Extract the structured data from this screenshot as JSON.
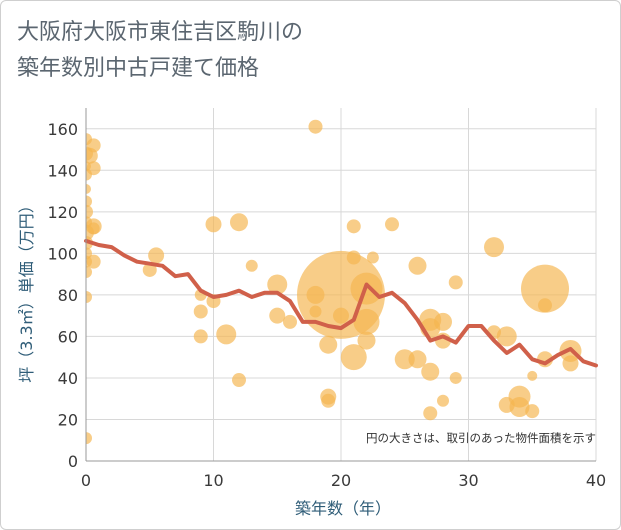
{
  "header": {
    "title_line1": "大阪府大阪市東住吉区駒川の",
    "title_line2": "築年数別中古戸建て価格"
  },
  "chart_data": {
    "type": "scatter",
    "title": "大阪府大阪市東住吉区駒川の築年数別中古戸建て価格",
    "xlabel": "築年数（年）",
    "ylabel": "坪（3.3㎡）単価（万円）",
    "xlim": [
      0,
      40
    ],
    "ylim": [
      0,
      170
    ],
    "xticks": [
      0,
      10,
      20,
      30,
      40
    ],
    "yticks": [
      0,
      20,
      40,
      60,
      80,
      100,
      120,
      140,
      160
    ],
    "grid": true,
    "note": "円の大きさは、取引のあった物件面積を示す",
    "colors": {
      "bubble": "#f5b550",
      "line": "#d0604a",
      "grid": "#d8d8d8",
      "axis": "#999999"
    },
    "bubbles": [
      {
        "x": 0,
        "y": 155,
        "r": 6
      },
      {
        "x": 0,
        "y": 148,
        "r": 7
      },
      {
        "x": 0,
        "y": 142,
        "r": 5
      },
      {
        "x": 0,
        "y": 138,
        "r": 6
      },
      {
        "x": 0,
        "y": 131,
        "r": 5
      },
      {
        "x": 0,
        "y": 125,
        "r": 6
      },
      {
        "x": 0,
        "y": 120,
        "r": 7
      },
      {
        "x": 0,
        "y": 115,
        "r": 6
      },
      {
        "x": 0,
        "y": 110,
        "r": 8
      },
      {
        "x": 0,
        "y": 105,
        "r": 7
      },
      {
        "x": 0,
        "y": 100,
        "r": 6
      },
      {
        "x": 0,
        "y": 96,
        "r": 6
      },
      {
        "x": 0,
        "y": 91,
        "r": 6
      },
      {
        "x": 0,
        "y": 79,
        "r": 6
      },
      {
        "x": 0,
        "y": 11,
        "r": 6
      },
      {
        "x": 0.3,
        "y": 147,
        "r": 8
      },
      {
        "x": 0.6,
        "y": 152,
        "r": 7
      },
      {
        "x": 0.6,
        "y": 141,
        "r": 7
      },
      {
        "x": 0.6,
        "y": 113,
        "r": 8
      },
      {
        "x": 0.6,
        "y": 112,
        "r": 6
      },
      {
        "x": 0.6,
        "y": 96,
        "r": 7
      },
      {
        "x": 5,
        "y": 92,
        "r": 7
      },
      {
        "x": 5.5,
        "y": 99,
        "r": 8
      },
      {
        "x": 9,
        "y": 80,
        "r": 6
      },
      {
        "x": 9,
        "y": 72,
        "r": 7
      },
      {
        "x": 9,
        "y": 60,
        "r": 7
      },
      {
        "x": 10,
        "y": 114,
        "r": 8
      },
      {
        "x": 10,
        "y": 77,
        "r": 7
      },
      {
        "x": 11,
        "y": 61,
        "r": 10
      },
      {
        "x": 12,
        "y": 115,
        "r": 9
      },
      {
        "x": 12,
        "y": 39,
        "r": 7
      },
      {
        "x": 13,
        "y": 94,
        "r": 6
      },
      {
        "x": 15,
        "y": 85,
        "r": 10
      },
      {
        "x": 15,
        "y": 70,
        "r": 8
      },
      {
        "x": 16,
        "y": 67,
        "r": 7
      },
      {
        "x": 18,
        "y": 161,
        "r": 7
      },
      {
        "x": 18,
        "y": 80,
        "r": 9
      },
      {
        "x": 18,
        "y": 72,
        "r": 6
      },
      {
        "x": 19,
        "y": 31,
        "r": 8
      },
      {
        "x": 19,
        "y": 29,
        "r": 7
      },
      {
        "x": 19,
        "y": 56,
        "r": 9
      },
      {
        "x": 20,
        "y": 80,
        "r": 44
      },
      {
        "x": 20,
        "y": 70,
        "r": 8
      },
      {
        "x": 21,
        "y": 113,
        "r": 7
      },
      {
        "x": 21,
        "y": 98,
        "r": 7
      },
      {
        "x": 21,
        "y": 50,
        "r": 13
      },
      {
        "x": 22,
        "y": 83,
        "r": 16
      },
      {
        "x": 22,
        "y": 67,
        "r": 13
      },
      {
        "x": 22,
        "y": 58,
        "r": 9
      },
      {
        "x": 22.5,
        "y": 98,
        "r": 6
      },
      {
        "x": 24,
        "y": 114,
        "r": 7
      },
      {
        "x": 25,
        "y": 49,
        "r": 10
      },
      {
        "x": 26,
        "y": 94,
        "r": 9
      },
      {
        "x": 26,
        "y": 49,
        "r": 9
      },
      {
        "x": 27,
        "y": 68,
        "r": 11
      },
      {
        "x": 27,
        "y": 64,
        "r": 10
      },
      {
        "x": 27,
        "y": 43,
        "r": 9
      },
      {
        "x": 27,
        "y": 23,
        "r": 7
      },
      {
        "x": 28,
        "y": 67,
        "r": 9
      },
      {
        "x": 28,
        "y": 58,
        "r": 8
      },
      {
        "x": 28,
        "y": 29,
        "r": 6
      },
      {
        "x": 29,
        "y": 86,
        "r": 7
      },
      {
        "x": 29,
        "y": 40,
        "r": 6
      },
      {
        "x": 32,
        "y": 103,
        "r": 10
      },
      {
        "x": 32,
        "y": 62,
        "r": 7
      },
      {
        "x": 33,
        "y": 60,
        "r": 10
      },
      {
        "x": 33,
        "y": 27,
        "r": 8
      },
      {
        "x": 34,
        "y": 31,
        "r": 11
      },
      {
        "x": 34,
        "y": 26,
        "r": 10
      },
      {
        "x": 35,
        "y": 41,
        "r": 5
      },
      {
        "x": 35,
        "y": 24,
        "r": 7
      },
      {
        "x": 36,
        "y": 83,
        "r": 24
      },
      {
        "x": 36,
        "y": 75,
        "r": 7
      },
      {
        "x": 36,
        "y": 49,
        "r": 8
      },
      {
        "x": 38,
        "y": 53,
        "r": 11
      },
      {
        "x": 38,
        "y": 47,
        "r": 8
      }
    ],
    "series": [
      {
        "x": [
          0,
          1,
          2,
          3,
          4,
          5,
          6,
          7,
          8,
          9,
          10,
          11,
          12,
          13,
          14,
          15,
          16,
          17,
          18,
          19,
          20,
          21,
          22,
          23,
          24,
          25,
          26,
          27,
          28,
          29,
          30,
          31,
          32,
          33,
          34,
          35,
          36,
          37,
          38,
          39,
          40
        ],
        "values": [
          106,
          104,
          103,
          99,
          96,
          95,
          94,
          89,
          90,
          82,
          79,
          80,
          82,
          79,
          81,
          81,
          77,
          67,
          67,
          65,
          64,
          68,
          85,
          79,
          81,
          76,
          68,
          58,
          60,
          57,
          65,
          65,
          58,
          52,
          56,
          49,
          47,
          51,
          54,
          48,
          46
        ]
      }
    ]
  }
}
